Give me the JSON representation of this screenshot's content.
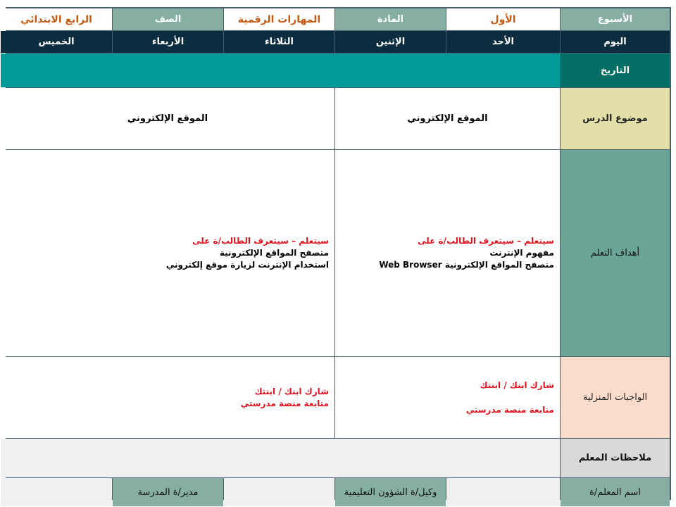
{
  "header": {
    "week_label": "الأسبوع",
    "week_value": "الأول",
    "subject_label": "المادة",
    "subject_value": "المهارات الرقمية",
    "grade_label": "الصف",
    "grade_value": "الرابع الابتدائي"
  },
  "days": {
    "label": "اليوم",
    "items": [
      "الأحد",
      "الإثنين",
      "الثلاثاء",
      "الأربعاء",
      "الخميس"
    ]
  },
  "date_label": "التاريخ",
  "topic": {
    "label": "موضوع الدرس",
    "lesson1": "الموقع الإلكتروني",
    "lesson2": "الموقع الإلكتروني"
  },
  "objectives": {
    "label": "أهداف التعلم",
    "lesson1": {
      "intro": "سيتعلم – سيتعرف الطالب/ة على",
      "lines": [
        "مفهوم الإنترنت",
        "متصفح المواقع الإلكترونية Web Browser"
      ]
    },
    "lesson2": {
      "intro": "سيتعلم – سيتعرف الطالب/ة على",
      "lines": [
        "متصفح المواقع الإلكترونية",
        "استخدام الإنترنت لزيارة موقع إلكتروني"
      ]
    }
  },
  "homework": {
    "label": "الواجبات المنزلية",
    "lesson1": [
      "شارك ابنك / ابنتك",
      "متابعة منصة مدرستي"
    ],
    "lesson2": [
      "شارك ابنك / ابنتك",
      "متابعة منصة مدرستي"
    ]
  },
  "notes_label": "ملاحظات المعلم",
  "footer": {
    "teacher": "اسم المعلم/ة",
    "deputy": "وكيل/ة الشؤون التعليمية",
    "principal": "مدير/ة المدرسة"
  }
}
